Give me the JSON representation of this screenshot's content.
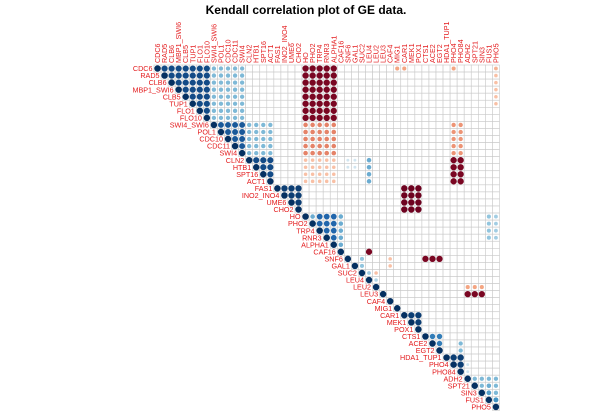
{
  "chart_data": {
    "type": "heatmap",
    "subtype": "correlation-matrix-upper-triangle",
    "title": "Kendall correlation plot of GE data.",
    "genes": [
      "CDC6",
      "RAD5",
      "CLB6",
      "MBP1_SWI6",
      "CLB5",
      "TUP1",
      "FLO1",
      "FLO10",
      "SWI4_SWI6",
      "POL1",
      "CDC10",
      "CDC11",
      "SWI4",
      "CLN2",
      "HTB1",
      "SPT16",
      "ACT1",
      "FAS1",
      "INO2_INO4",
      "UME6",
      "CHO2",
      "HO",
      "PHO2",
      "TRP4",
      "RNR3",
      "ALPHA1",
      "CAF16",
      "SNF6",
      "GAL1",
      "SUC2",
      "LEU4",
      "LEU2",
      "LEU3",
      "CAF4",
      "MIG1",
      "CAR1",
      "MEK1",
      "POX1",
      "CTS1",
      "ACE2",
      "EGT2",
      "HDA1_TUP1",
      "PHO4",
      "PHO84",
      "ADH2",
      "SPT21",
      "SIN3",
      "FUS1",
      "PHO5"
    ],
    "color_scale": {
      "negative": [
        "#67001f",
        "#b2182b",
        "#d6604d",
        "#f4a582",
        "#fddbc7"
      ],
      "neutral": "#f7f7f7",
      "positive": [
        "#d1e5f0",
        "#92c5de",
        "#4393c3",
        "#2166ac",
        "#053061"
      ]
    },
    "blocks": [
      {
        "rows": [
          0,
          7
        ],
        "cols": [
          0,
          7
        ],
        "value": 0.9
      },
      {
        "rows": [
          0,
          7
        ],
        "cols": [
          8,
          12
        ],
        "value": 0.45
      },
      {
        "rows": [
          8,
          12
        ],
        "cols": [
          8,
          12
        ],
        "value": 0.85
      },
      {
        "rows": [
          8,
          12
        ],
        "cols": [
          13,
          16
        ],
        "value": 0.45
      },
      {
        "rows": [
          13,
          16
        ],
        "cols": [
          13,
          16
        ],
        "value": 0.9
      },
      {
        "rows": [
          17,
          20
        ],
        "cols": [
          17,
          20
        ],
        "value": 0.95
      },
      {
        "rows": [
          21,
          25
        ],
        "cols": [
          21,
          25
        ],
        "value": 0.8
      },
      {
        "rows": [
          21,
          25
        ],
        "cols": [
          21,
          22
        ],
        "value": 0.5
      },
      {
        "rows": [
          35,
          37
        ],
        "cols": [
          35,
          37
        ],
        "value": 0.95
      },
      {
        "rows": [
          38,
          40
        ],
        "cols": [
          38,
          40
        ],
        "value": 0.7
      },
      {
        "rows": [
          41,
          43
        ],
        "cols": [
          41,
          43
        ],
        "value": 0.95
      },
      {
        "rows": [
          44,
          48
        ],
        "cols": [
          44,
          48
        ],
        "value": 0.45
      },
      {
        "rows": [
          0,
          7
        ],
        "cols": [
          21,
          25
        ],
        "value": -0.95
      },
      {
        "rows": [
          8,
          12
        ],
        "cols": [
          21,
          25
        ],
        "value": -0.5
      },
      {
        "rows": [
          13,
          16
        ],
        "cols": [
          21,
          25
        ],
        "value": -0.3
      },
      {
        "rows": [
          8,
          12
        ],
        "cols": [
          42,
          43
        ],
        "value": -0.45
      },
      {
        "rows": [
          13,
          16
        ],
        "cols": [
          42,
          43
        ],
        "value": -0.95
      },
      {
        "rows": [
          17,
          20
        ],
        "cols": [
          35,
          37
        ],
        "value": -0.98
      },
      {
        "rows": [
          27,
          27
        ],
        "cols": [
          38,
          40
        ],
        "value": -0.95
      },
      {
        "rows": [
          31,
          31
        ],
        "cols": [
          44,
          46
        ],
        "value": -0.4
      },
      {
        "rows": [
          32,
          32
        ],
        "cols": [
          44,
          46
        ],
        "value": -0.95
      }
    ],
    "cells": [
      [
        0,
        34,
        -0.4
      ],
      [
        0,
        35,
        -0.4
      ],
      [
        0,
        42,
        -0.4
      ],
      [
        0,
        48,
        -0.35
      ],
      [
        1,
        48,
        -0.3
      ],
      [
        2,
        48,
        -0.3
      ],
      [
        3,
        48,
        -0.3
      ],
      [
        4,
        48,
        -0.3
      ],
      [
        5,
        48,
        -0.3
      ],
      [
        13,
        30,
        0.5
      ],
      [
        14,
        30,
        0.5
      ],
      [
        15,
        30,
        0.5
      ],
      [
        16,
        30,
        0.5
      ],
      [
        13,
        27,
        0.2
      ],
      [
        13,
        28,
        0.2
      ],
      [
        14,
        27,
        0.2
      ],
      [
        14,
        28,
        0.2
      ],
      [
        21,
        26,
        0.5
      ],
      [
        22,
        26,
        0.5
      ],
      [
        23,
        26,
        0.5
      ],
      [
        24,
        26,
        0.5
      ],
      [
        25,
        26,
        0.5
      ],
      [
        21,
        47,
        0.4
      ],
      [
        22,
        47,
        0.4
      ],
      [
        23,
        47,
        0.4
      ],
      [
        24,
        47,
        0.4
      ],
      [
        21,
        48,
        0.35
      ],
      [
        22,
        48,
        0.35
      ],
      [
        23,
        48,
        0.35
      ],
      [
        24,
        48,
        0.35
      ],
      [
        26,
        30,
        -0.95
      ],
      [
        27,
        33,
        -0.3
      ],
      [
        28,
        33,
        -0.3
      ],
      [
        28,
        29,
        0.4
      ],
      [
        27,
        29,
        0.4
      ],
      [
        29,
        30,
        0.35
      ],
      [
        29,
        31,
        -0.3
      ],
      [
        30,
        31,
        0.3
      ],
      [
        39,
        43,
        0.45
      ],
      [
        40,
        43,
        0.45
      ],
      [
        42,
        44,
        0.2
      ],
      [
        43,
        44,
        0.2
      ],
      [
        44,
        47,
        0.45
      ],
      [
        45,
        47,
        0.5
      ],
      [
        46,
        47,
        0.55
      ],
      [
        47,
        48,
        0.6
      ]
    ]
  }
}
